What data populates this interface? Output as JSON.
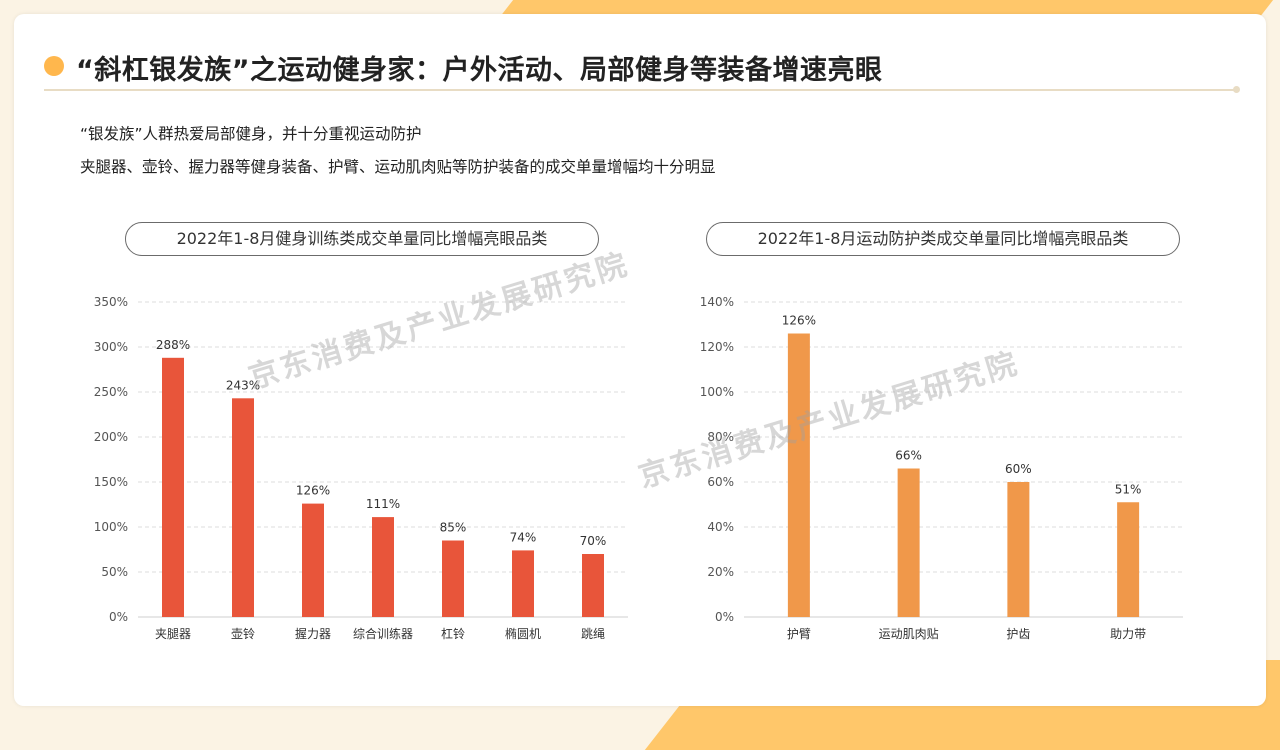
{
  "title": "“斜杠银发族”之运动健身家：户外活动、局部健身等装备增速亮眼",
  "description": [
    "“银发族”人群热爱局部健身，并十分重视运动防护",
    "夹腿器、壶铃、握力器等健身装备、护臂、运动肌肉贴等防护装备的成交单量增幅均十分明显"
  ],
  "watermark": "京东消费及产业发展研究院",
  "colors": {
    "accent": "#ffb74d",
    "bar_left": "#e8553a",
    "bar_right": "#f0984a"
  },
  "chart_data": [
    {
      "type": "bar",
      "title": "2022年1-8月健身训练类成交单量同比增幅亮眼品类",
      "categories": [
        "夹腿器",
        "壶铃",
        "握力器",
        "综合训练器",
        "杠铃",
        "椭圆机",
        "跳绳"
      ],
      "values": [
        288,
        243,
        126,
        111,
        85,
        74,
        70
      ],
      "value_labels": [
        "288%",
        "243%",
        "126%",
        "111%",
        "85%",
        "74%",
        "70%"
      ],
      "yticks": [
        0,
        50,
        100,
        150,
        200,
        250,
        300,
        350
      ],
      "ytick_labels": [
        "0%",
        "50%",
        "100%",
        "150%",
        "200%",
        "250%",
        "300%",
        "350%"
      ],
      "ylim": [
        0,
        350
      ],
      "grid": true
    },
    {
      "type": "bar",
      "title": "2022年1-8月运动防护类成交单量同比增幅亮眼品类",
      "categories": [
        "护臂",
        "运动肌肉贴",
        "护齿",
        "助力带"
      ],
      "values": [
        126,
        66,
        60,
        51
      ],
      "value_labels": [
        "126%",
        "66%",
        "60%",
        "51%"
      ],
      "yticks": [
        0,
        20,
        40,
        60,
        80,
        100,
        120,
        140
      ],
      "ytick_labels": [
        "0%",
        "20%",
        "40%",
        "60%",
        "80%",
        "100%",
        "120%",
        "140%"
      ],
      "ylim": [
        0,
        140
      ],
      "grid": true
    }
  ]
}
